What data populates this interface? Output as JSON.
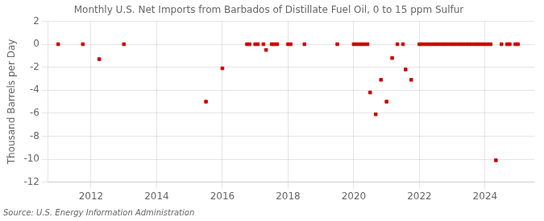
{
  "chart_data": {
    "type": "scatter",
    "title": "Monthly U.S. Net Imports from Barbados of Distillate Fuel Oil, 0 to 15 ppm Sulfur",
    "ylabel": "Thousand Barrels per Day",
    "annotation": "Source: U.S. Energy Information Administration",
    "color": "#cc0000",
    "marker": "square",
    "grid": true,
    "xlim": [
      2010.7,
      2025.5
    ],
    "xticks": [
      2012,
      2014,
      2016,
      2018,
      2020,
      2022,
      2024
    ],
    "ylim": [
      -12,
      2
    ],
    "yticks": [
      2,
      0,
      -2,
      -4,
      -6,
      -8,
      -10,
      -12
    ],
    "x": [
      2011.0,
      2011.75,
      2012.25,
      2013.0,
      2015.5,
      2016.0,
      2016.75,
      2016.83,
      2017.0,
      2017.08,
      2017.25,
      2017.33,
      2017.5,
      2017.58,
      2017.67,
      2018.0,
      2018.08,
      2018.5,
      2019.5,
      2020.0,
      2020.08,
      2020.17,
      2020.25,
      2020.33,
      2020.42,
      2020.5,
      2020.67,
      2020.83,
      2021.0,
      2021.17,
      2021.33,
      2021.5,
      2021.58,
      2021.75,
      2022.0,
      2022.08,
      2022.17,
      2022.25,
      2022.33,
      2022.42,
      2022.5,
      2022.58,
      2022.67,
      2022.75,
      2022.83,
      2022.92,
      2023.0,
      2023.08,
      2023.17,
      2023.25,
      2023.33,
      2023.42,
      2023.5,
      2023.58,
      2023.67,
      2023.75,
      2023.83,
      2023.92,
      2024.0,
      2024.08,
      2024.17,
      2024.33,
      2024.5,
      2024.67,
      2024.75,
      2024.92,
      2025.0
    ],
    "values": [
      0,
      0,
      -1.3,
      0,
      -5.0,
      -2.1,
      0,
      0,
      0,
      0,
      0,
      -0.5,
      0,
      0,
      0,
      0,
      0,
      0,
      0,
      0,
      0,
      0,
      0,
      0,
      0,
      -4.2,
      -6.1,
      -3.1,
      -5.0,
      -1.2,
      0,
      0,
      -2.2,
      -3.1,
      0,
      0,
      0,
      0,
      0,
      0,
      0,
      0,
      0,
      0,
      0,
      0,
      0,
      0,
      0,
      0,
      0,
      0,
      0,
      0,
      0,
      0,
      0,
      0,
      0,
      0,
      0,
      -10.1,
      0,
      0,
      0,
      0,
      0
    ]
  }
}
